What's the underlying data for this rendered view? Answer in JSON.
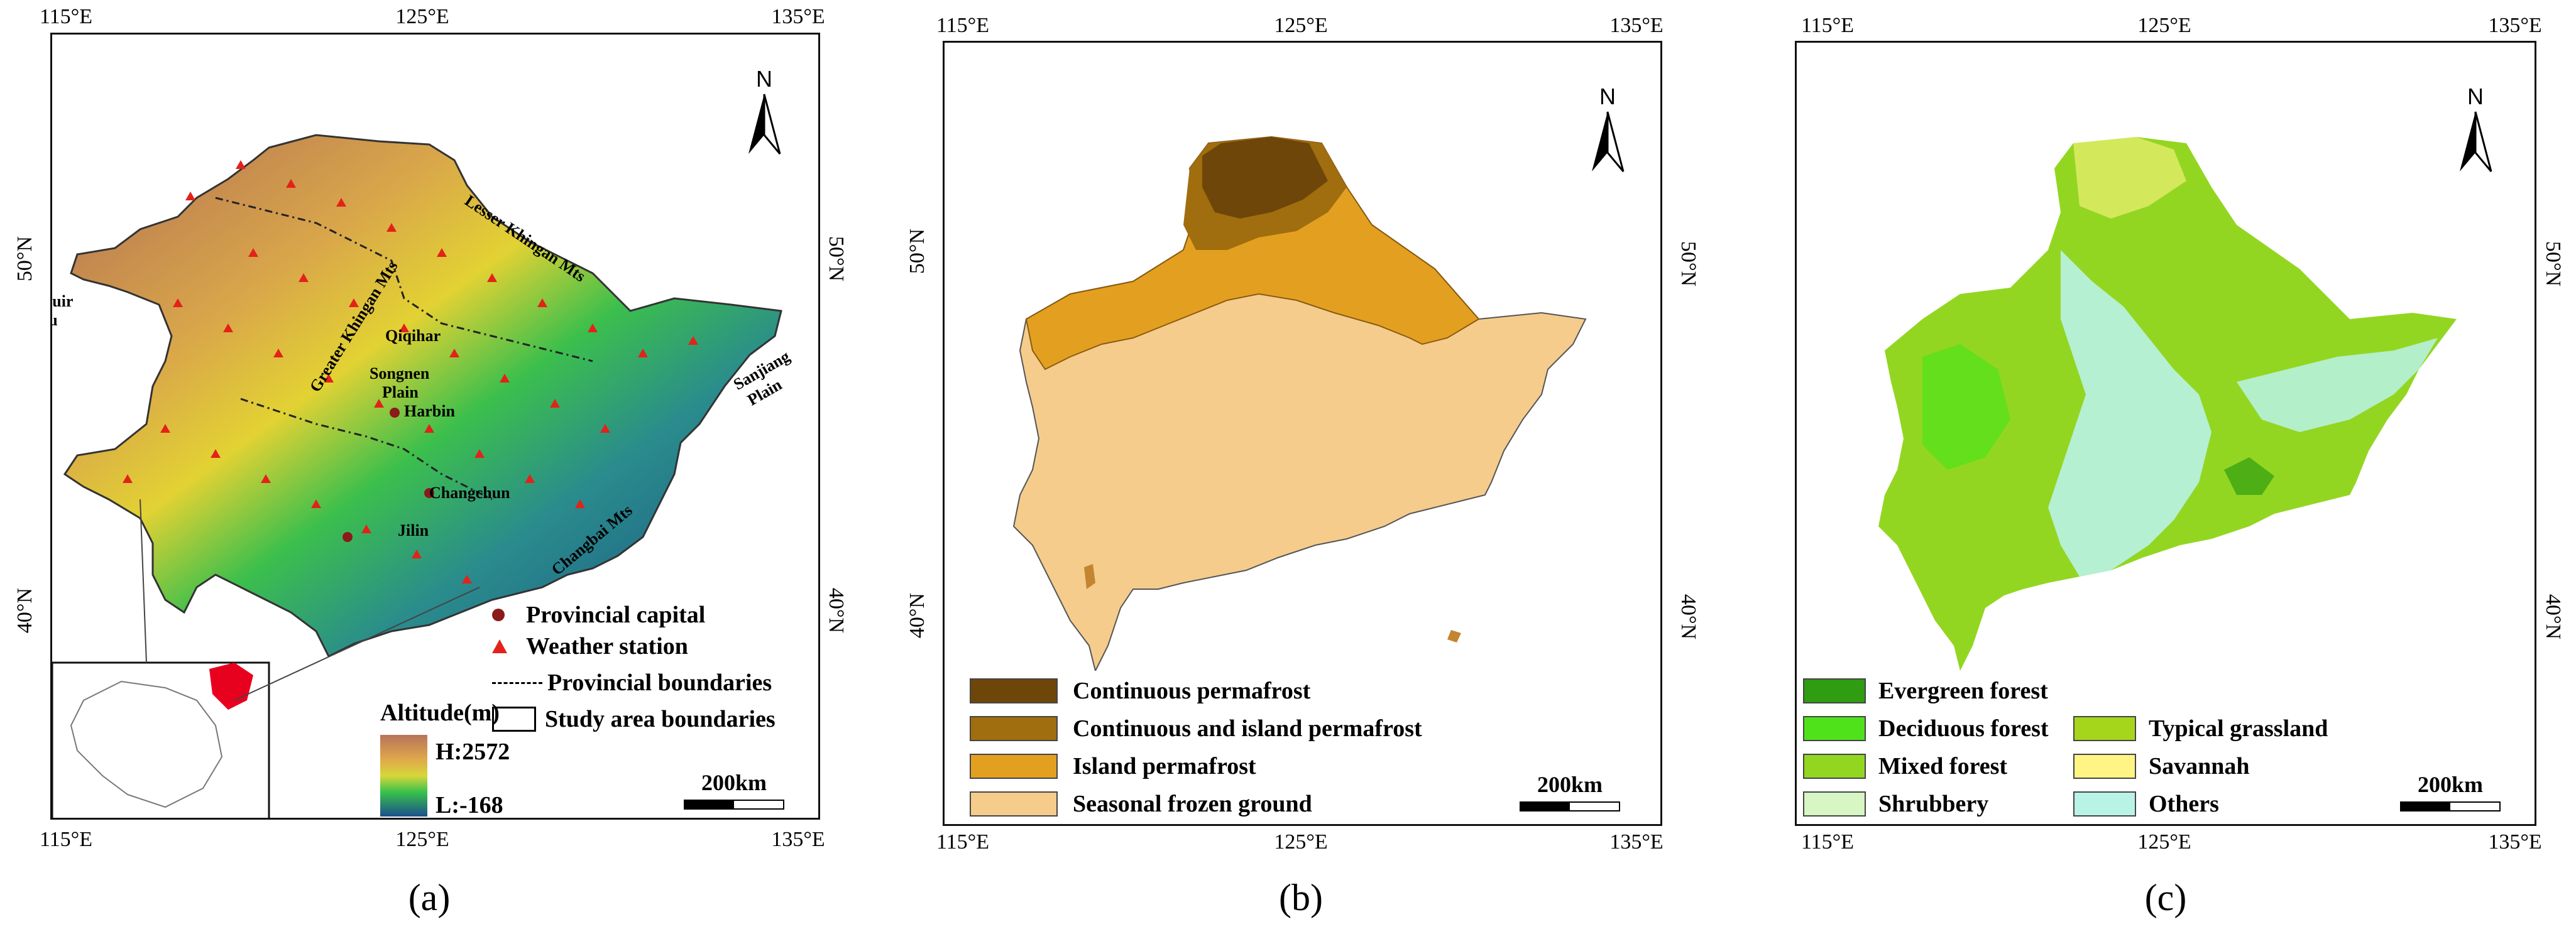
{
  "ticks": {
    "lon_labels": [
      "115°E",
      "125°E",
      "135°E"
    ],
    "lat_labels": [
      "50°N",
      "40°N"
    ]
  },
  "north_label": "N",
  "scale_label": "200km",
  "panels": [
    {
      "caption": "(a)",
      "place_labels": [
        "Hulunbuir",
        "Plateau",
        "Greater Khingan Mts",
        "Lesser Khingan Mts",
        "Qiqihar",
        "Songnen",
        "Plain",
        "Harbin",
        "Sanjiang",
        "Plain",
        "Changchun",
        "Jilin",
        "Changbai Mts"
      ],
      "legend": {
        "provincial_capital": "Provincial capital",
        "weather_station": "Weather station",
        "provincial_boundaries": "Provincial boundaries",
        "study_area_boundaries": "Study area boundaries",
        "altitude_title": "Altitude(m)",
        "altitude_high": "H:2572",
        "altitude_low": "L:-168"
      },
      "colors": {
        "station": "#e32219",
        "capital": "#8b1a1a",
        "high": "#b7745a",
        "mid": "#d8d73a",
        "green": "#39c24a",
        "low": "#1b4f8c"
      }
    },
    {
      "caption": "(b)",
      "legend": [
        "Continuous permafrost",
        "Continuous and island permafrost",
        "Island permafrost",
        "Seasonal frozen ground"
      ],
      "colors": [
        "#6e4609",
        "#a06e0e",
        "#e3a020",
        "#f5cc8c"
      ]
    },
    {
      "caption": "(c)",
      "legend": [
        "Evergreen forest",
        "Deciduous forest",
        "Mixed forest",
        "Shrubbery",
        "Typical grassland",
        "Savannah",
        "Others"
      ],
      "colors": [
        "#2f9c12",
        "#4fe21a",
        "#93d621",
        "#d8f5c4",
        "#a6d61c",
        "#fff484",
        "#b9f3e6"
      ]
    }
  ]
}
